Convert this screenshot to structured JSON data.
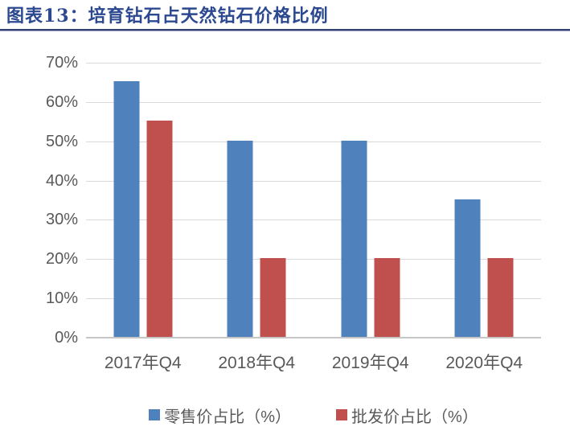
{
  "header": {
    "title": "图表13：培育钻石占天然钻石价格比例"
  },
  "chart_data": {
    "type": "bar",
    "title": "培育钻石占天然钻石价格比例",
    "categories": [
      "2017年Q4",
      "2018年Q4",
      "2019年Q4",
      "2020年Q4"
    ],
    "series": [
      {
        "key": "retail",
        "name": "零售价占比（%）",
        "color": "#4F81BD",
        "values": [
          65,
          50,
          50,
          35
        ]
      },
      {
        "key": "wholesale",
        "name": "批发价占比（%）",
        "color": "#C0504D",
        "values": [
          55,
          20,
          20,
          20
        ]
      }
    ],
    "xlabel": "",
    "ylabel": "",
    "ylim": [
      0,
      70
    ],
    "ytick_step": 10,
    "ytick_labels": [
      "70%",
      "60%",
      "50%",
      "40%",
      "30%",
      "20%",
      "10%",
      "0%"
    ],
    "grid": true,
    "legend_position": "bottom"
  },
  "colors": {
    "title_text": "#2B4890",
    "rule_dark": "#333F79",
    "rule_light": "#9CA3C4",
    "axis_text": "#595959",
    "gridline": "#D9D9D9",
    "baseline": "#C6C6C6",
    "background": "#FFFFFF"
  }
}
